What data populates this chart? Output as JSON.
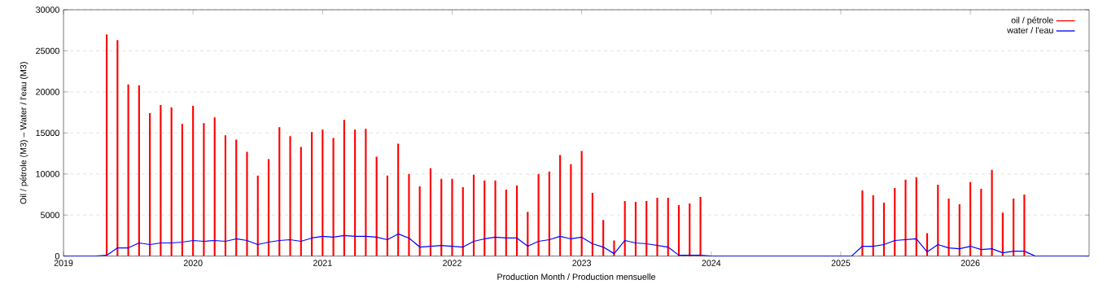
{
  "chart_data": {
    "type": "bar",
    "xlabel": "Production Month / Production mensuelle",
    "ylabel": "Oil / pétrole (M3)  –  Water / l'eau (M3)",
    "xlim": [
      "2019-01",
      "2026-12"
    ],
    "xticks": [
      "2019",
      "2020",
      "2021",
      "2022",
      "2023",
      "2024",
      "2025",
      "2026"
    ],
    "ylim": [
      0,
      30000
    ],
    "yticks": [
      0,
      5000,
      10000,
      15000,
      20000,
      25000,
      30000
    ],
    "grid": "y",
    "legend": "top right",
    "series": [
      {
        "name": "oil / pétrole",
        "color": "#ff0000",
        "x": [
          "2019-05",
          "2019-06",
          "2019-07",
          "2019-08",
          "2019-09",
          "2019-10",
          "2019-11",
          "2019-12",
          "2020-01",
          "2020-02",
          "2020-03",
          "2020-04",
          "2020-05",
          "2020-06",
          "2020-07",
          "2020-08",
          "2020-09",
          "2020-10",
          "2020-11",
          "2020-12",
          "2021-01",
          "2021-02",
          "2021-03",
          "2021-04",
          "2021-05",
          "2021-06",
          "2021-07",
          "2021-08",
          "2021-09",
          "2021-10",
          "2021-11",
          "2021-12",
          "2022-01",
          "2022-02",
          "2022-03",
          "2022-04",
          "2022-05",
          "2022-06",
          "2022-07",
          "2022-08",
          "2022-09",
          "2022-10",
          "2022-11",
          "2022-12",
          "2023-01",
          "2023-02",
          "2023-03",
          "2023-04",
          "2023-05",
          "2023-06",
          "2023-07",
          "2023-08",
          "2023-09",
          "2023-10",
          "2023-11",
          "2023-12",
          "2025-03",
          "2025-04",
          "2025-05",
          "2025-06",
          "2025-07",
          "2025-08",
          "2025-09",
          "2025-10",
          "2025-11",
          "2025-12",
          "2026-01",
          "2026-02",
          "2026-03",
          "2026-04",
          "2026-05",
          "2026-06"
        ],
        "values": [
          27000,
          26300,
          20900,
          20800,
          17400,
          18400,
          18100,
          16100,
          18300,
          16200,
          16900,
          14700,
          14200,
          12700,
          9800,
          11800,
          15700,
          14600,
          13300,
          15100,
          15400,
          14400,
          16600,
          15400,
          15500,
          12100,
          9800,
          13700,
          10000,
          8500,
          10700,
          9400,
          9400,
          8400,
          9900,
          9200,
          9200,
          8100,
          8600,
          5400,
          10000,
          10300,
          12300,
          11200,
          12800,
          7700,
          4400,
          1900,
          6700,
          6600,
          6700,
          7100,
          7100,
          6200,
          6400,
          7200,
          8000,
          7400,
          6500,
          8300,
          9300,
          9600,
          2800,
          8700,
          7000,
          6300,
          9000,
          8200,
          10500,
          5300,
          7000,
          7500
        ]
      },
      {
        "name": "water / l'eau",
        "type": "line",
        "color": "#0000ff",
        "x": [
          "2019-01",
          "2019-02",
          "2019-03",
          "2019-04",
          "2019-05",
          "2019-06",
          "2019-07",
          "2019-08",
          "2019-09",
          "2019-10",
          "2019-11",
          "2019-12",
          "2020-01",
          "2020-02",
          "2020-03",
          "2020-04",
          "2020-05",
          "2020-06",
          "2020-07",
          "2020-08",
          "2020-09",
          "2020-10",
          "2020-11",
          "2020-12",
          "2021-01",
          "2021-02",
          "2021-03",
          "2021-04",
          "2021-05",
          "2021-06",
          "2021-07",
          "2021-08",
          "2021-09",
          "2021-10",
          "2021-11",
          "2021-12",
          "2022-01",
          "2022-02",
          "2022-03",
          "2022-04",
          "2022-05",
          "2022-06",
          "2022-07",
          "2022-08",
          "2022-09",
          "2022-10",
          "2022-11",
          "2022-12",
          "2023-01",
          "2023-02",
          "2023-03",
          "2023-04",
          "2023-05",
          "2023-06",
          "2023-07",
          "2023-08",
          "2023-09",
          "2023-10",
          "2023-11",
          "2023-12",
          "2024-01",
          "2025-02",
          "2025-03",
          "2025-04",
          "2025-05",
          "2025-06",
          "2025-07",
          "2025-08",
          "2025-09",
          "2025-10",
          "2025-11",
          "2025-12",
          "2026-01",
          "2026-02",
          "2026-03",
          "2026-04",
          "2026-05",
          "2026-06",
          "2026-07",
          "2026-12"
        ],
        "values": [
          0,
          0,
          0,
          0,
          100,
          1000,
          1000,
          1600,
          1400,
          1600,
          1600,
          1700,
          1900,
          1800,
          1900,
          1800,
          2100,
          1900,
          1400,
          1700,
          1900,
          2000,
          1800,
          2200,
          2400,
          2300,
          2500,
          2400,
          2400,
          2300,
          2000,
          2700,
          2200,
          1100,
          1200,
          1300,
          1200,
          1100,
          1800,
          2100,
          2300,
          2200,
          2200,
          1200,
          1800,
          2000,
          2400,
          2100,
          2300,
          1500,
          1100,
          300,
          1900,
          1600,
          1500,
          1300,
          1100,
          100,
          100,
          100,
          0,
          0,
          1200,
          1200,
          1400,
          1900,
          2000,
          2100,
          500,
          1400,
          1000,
          900,
          1200,
          800,
          900,
          400,
          600,
          600,
          0,
          0
        ]
      }
    ]
  }
}
